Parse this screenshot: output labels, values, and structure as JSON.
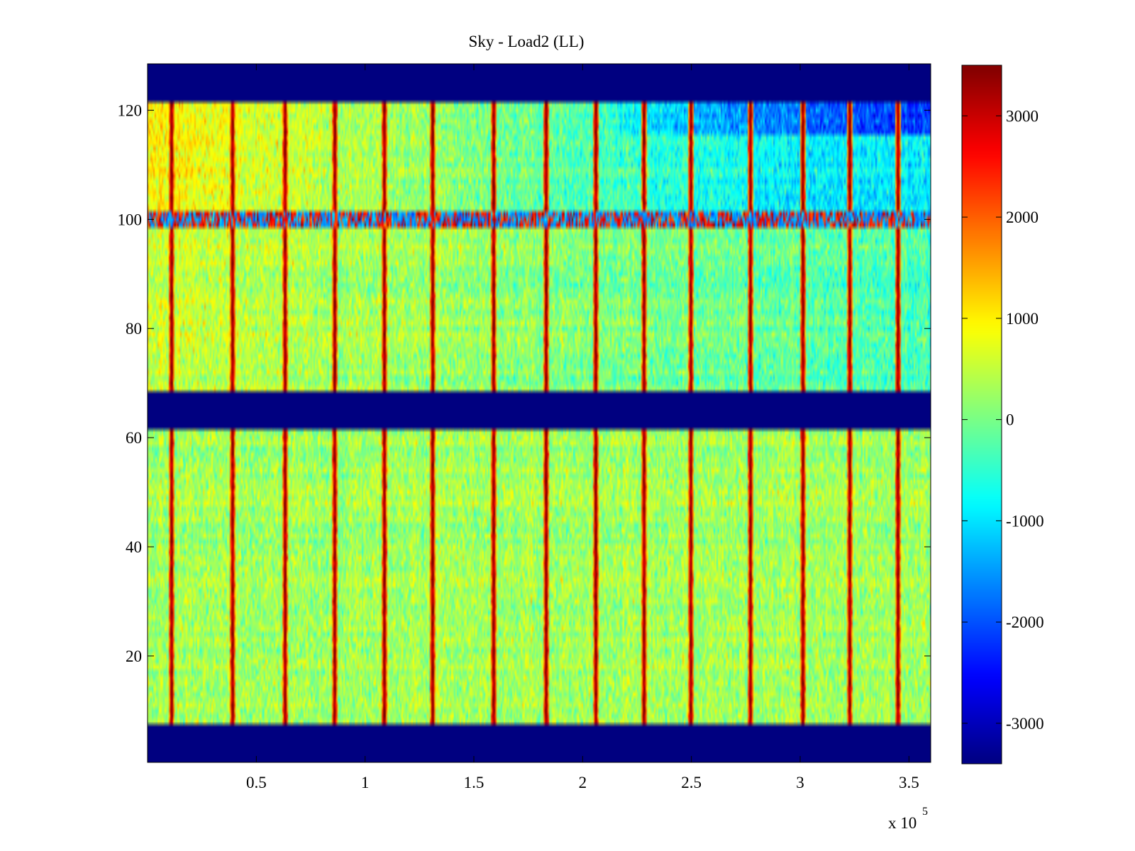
{
  "chart_data": {
    "type": "heatmap",
    "title": "Sky - Load2 (LL)",
    "xlabel": "",
    "ylabel": "",
    "x_exponent_label": "x 10",
    "x_exponent_power": "5",
    "xlim": [
      0,
      360000
    ],
    "ylim": [
      0.5,
      128.5
    ],
    "x_ticks": [
      50000,
      100000,
      150000,
      200000,
      250000,
      300000,
      350000
    ],
    "x_tick_labels": [
      "0.5",
      "1",
      "1.5",
      "2",
      "2.5",
      "3",
      "3.5"
    ],
    "y_ticks": [
      20,
      40,
      60,
      80,
      100,
      120
    ],
    "y_tick_labels": [
      "20",
      "40",
      "60",
      "80",
      "100",
      "120"
    ],
    "colormap": "jet",
    "clim": [
      -3400,
      3500
    ],
    "colorbar_ticks": [
      3000,
      2000,
      1000,
      0,
      -1000,
      -2000,
      -3000
    ],
    "colorbar_tick_labels": [
      "3000",
      "2000",
      "1000",
      "0",
      "-1000",
      "-2000",
      "-3000"
    ],
    "empty_channel_ranges": [
      [
        1,
        7
      ],
      [
        62,
        68
      ],
      [
        122,
        128
      ]
    ],
    "anomalous_channel_range": [
      99,
      101
    ],
    "baseline": {
      "channels_8_61": 300,
      "channels_69_98_left": 600,
      "channels_69_98_right": -300,
      "channels_102_121_left": 1000,
      "channels_102_121_right": -900,
      "channels_116_121_far_right": -2200
    },
    "spike_columns_x": [
      11000,
      39000,
      63000,
      86000,
      109000,
      131000,
      159000,
      183000,
      206000,
      228000,
      250000,
      277000,
      301000,
      323000,
      345000
    ]
  }
}
